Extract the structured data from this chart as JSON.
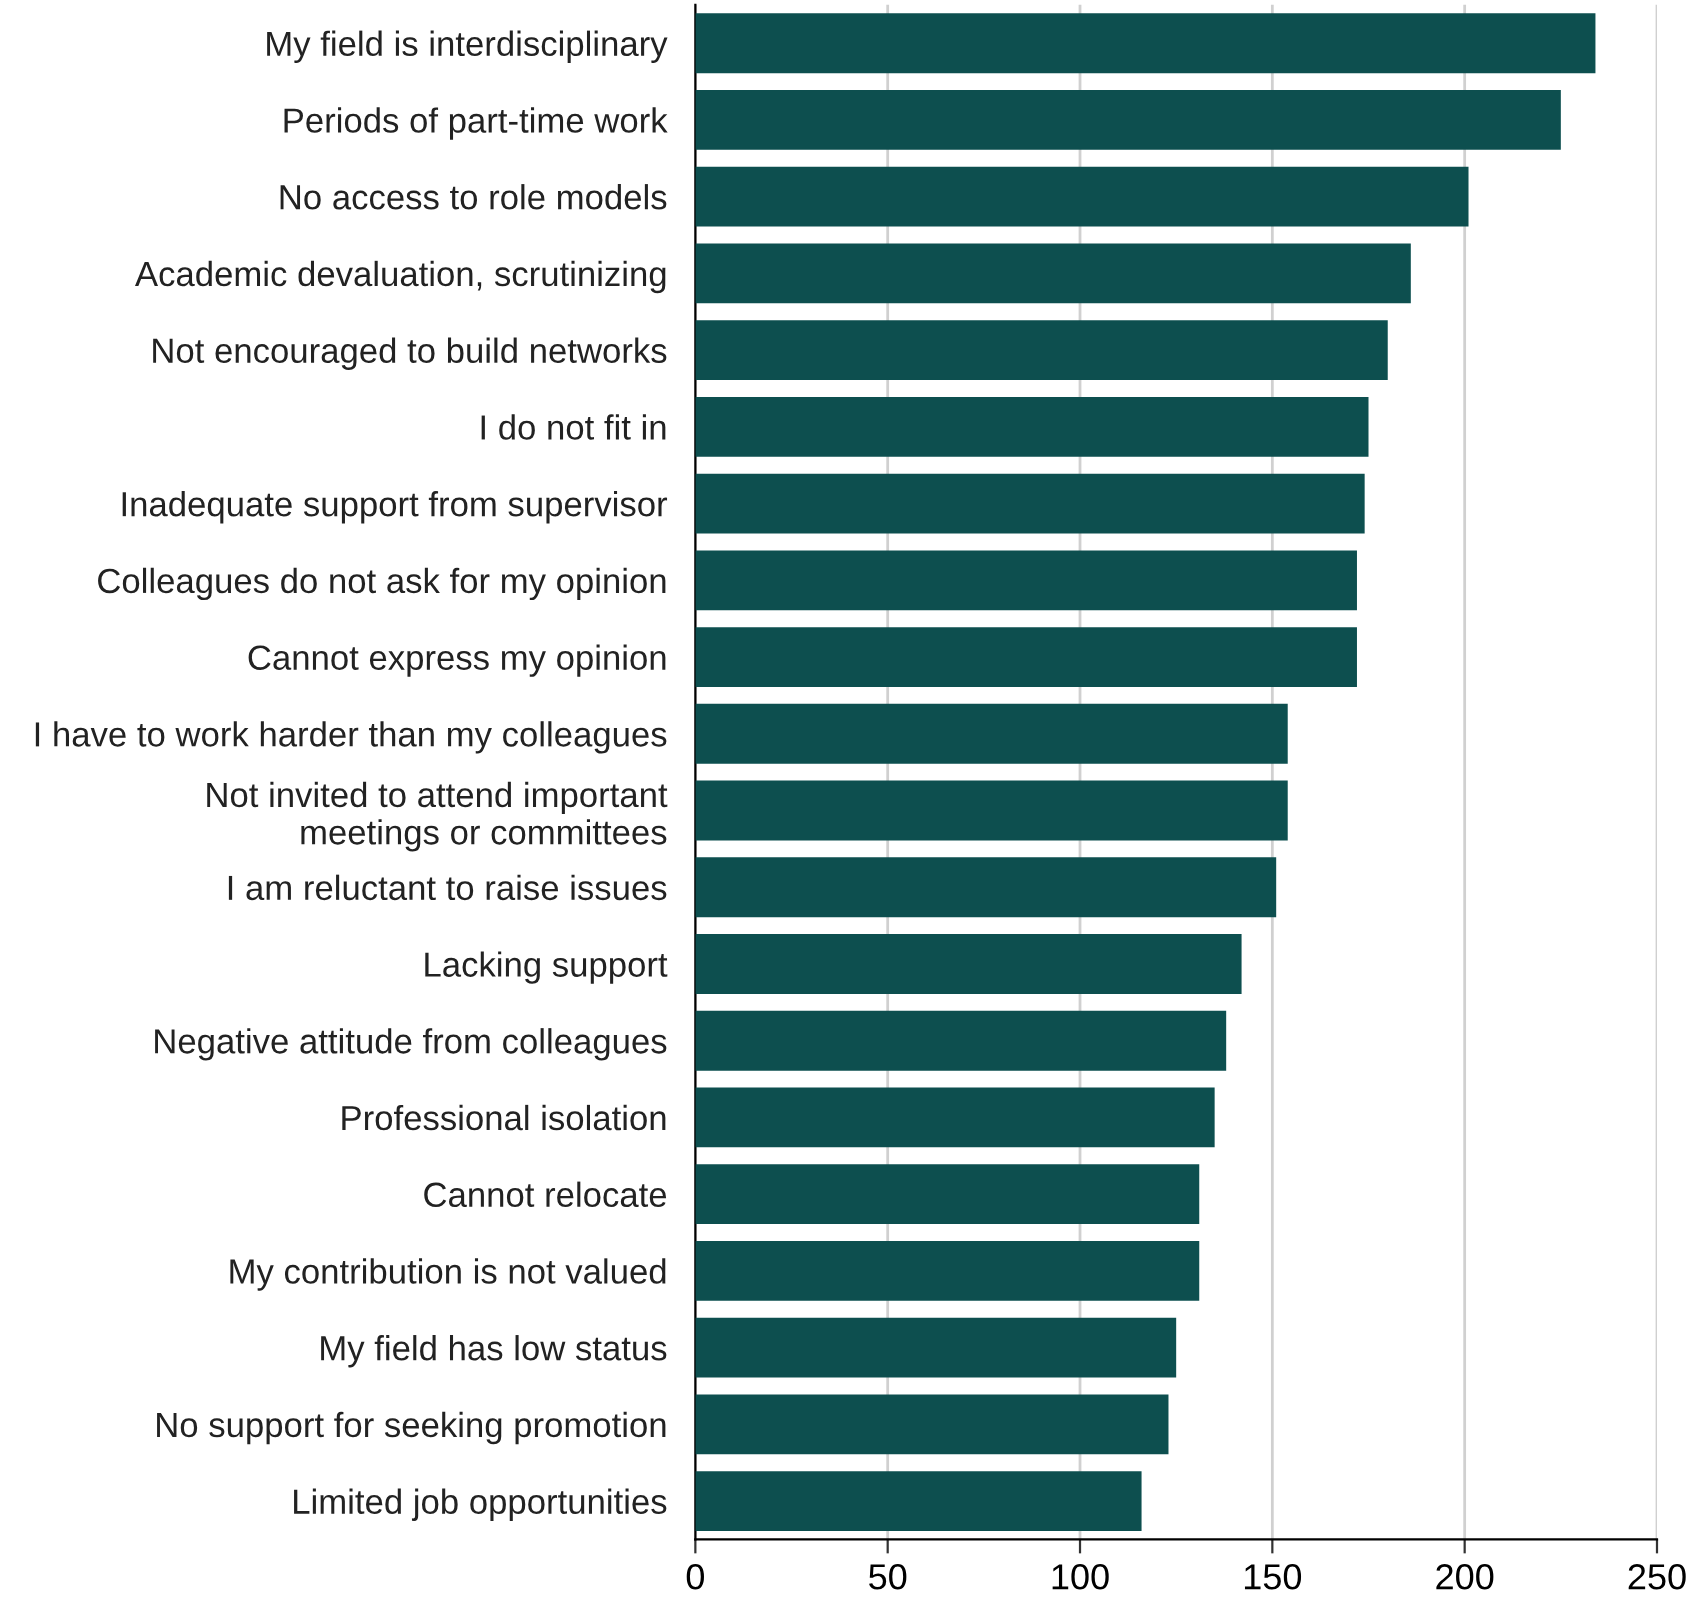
{
  "chart_data": {
    "type": "bar",
    "orientation": "horizontal",
    "categories": [
      "My field is interdisciplinary",
      "Periods of part-time work",
      "No access to role models",
      "Academic devaluation, scrutinizing",
      "Not encouraged to build networks",
      "I do not fit in",
      "Inadequate support from supervisor",
      "Colleagues do not ask for my opinion",
      "Cannot express my opinion",
      "I have to work harder than my colleagues",
      "Not invited to attend important\nmeetings or committees",
      "I am reluctant to raise issues",
      "Lacking support",
      "Negative attitude from colleagues",
      "Professional isolation",
      "Cannot relocate",
      "My contribution is not valued",
      "My field has low status",
      "No support for seeking promotion",
      "Limited job opportunities"
    ],
    "values": [
      234,
      225,
      201,
      186,
      180,
      175,
      174,
      172,
      172,
      154,
      154,
      151,
      142,
      138,
      135,
      131,
      131,
      125,
      123,
      116
    ],
    "color": "#0d4f4f",
    "xlim": [
      0,
      250
    ],
    "xticks": [
      0,
      50,
      100,
      150,
      200,
      250
    ],
    "grid": "x",
    "legend": false
  }
}
